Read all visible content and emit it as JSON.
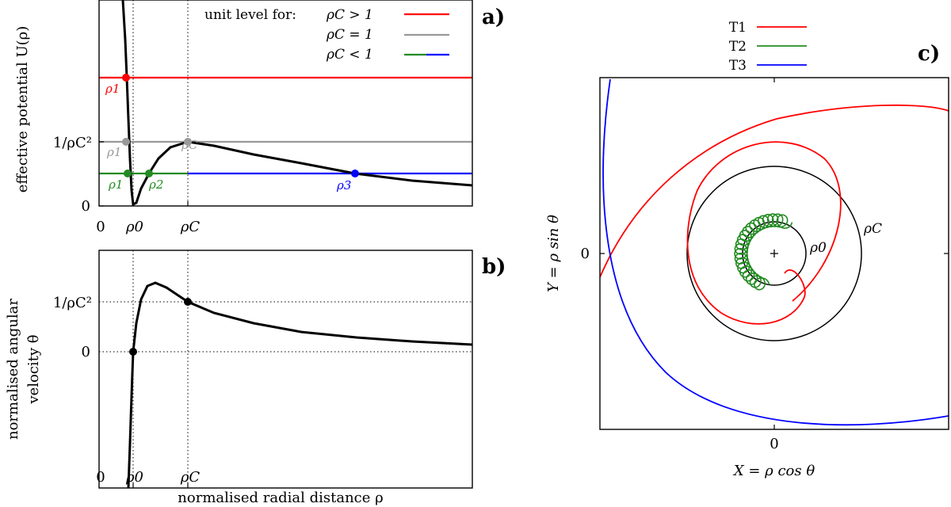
{
  "chart_data": [
    {
      "panel_label": "a)",
      "type": "line",
      "ylabel": "effective potential U(ρ)",
      "x_ticks": [
        "0",
        "ρ0",
        "ρC"
      ],
      "y_ticks": [
        "0",
        "1/ρC²"
      ],
      "legend": {
        "title": "unit level for:",
        "entries": [
          {
            "label": "ρC > 1",
            "colors": [
              "#ff0000"
            ]
          },
          {
            "label": "ρC = 1",
            "colors": [
              "#999999"
            ]
          },
          {
            "label": "ρC < 1",
            "colors": [
              "#228b22",
              "#0000ff"
            ]
          }
        ]
      },
      "series": [
        {
          "name": "U(ρ)",
          "color": "#000000"
        },
        {
          "name": "level ρC > 1",
          "color": "#ff0000",
          "points": [
            "ρ1"
          ]
        },
        {
          "name": "level ρC = 1",
          "color": "#999999",
          "points": [
            "ρ1",
            "ρC"
          ]
        },
        {
          "name": "level ρC < 1",
          "colors": [
            "#228b22",
            "#0000ff"
          ],
          "points": [
            "ρ1",
            "ρ2",
            "ρ3"
          ]
        }
      ],
      "point_labels": {
        "red": [
          "ρ1"
        ],
        "gray": [
          "ρ1",
          "ρC"
        ],
        "green": [
          "ρ1",
          "ρ2"
        ],
        "blue": [
          "ρ3"
        ]
      }
    },
    {
      "panel_label": "b)",
      "type": "line",
      "xlabel": "normalised radial distance ρ",
      "ylabel_line1": "normalised angular",
      "ylabel_line2": "velocity θ̇",
      "x_ticks": [
        "0",
        "ρ0",
        "ρC"
      ],
      "y_ticks": [
        "0",
        "1/ρC²"
      ],
      "series": [
        {
          "name": "θ̇(ρ)",
          "color": "#000000",
          "marked_points": [
            "ρ0",
            "ρC"
          ]
        }
      ]
    },
    {
      "panel_label": "c)",
      "type": "line",
      "xlabel": "X = ρ cos θ",
      "ylabel": "Y = ρ sin θ",
      "x_ticks": [
        "0"
      ],
      "y_ticks": [
        "0"
      ],
      "circle_labels": [
        "ρ0",
        "ρC"
      ],
      "legend": [
        {
          "label": "T1",
          "color": "#ff0000"
        },
        {
          "label": "T2",
          "color": "#228b22"
        },
        {
          "label": "T3",
          "color": "#0000ff"
        }
      ]
    }
  ]
}
